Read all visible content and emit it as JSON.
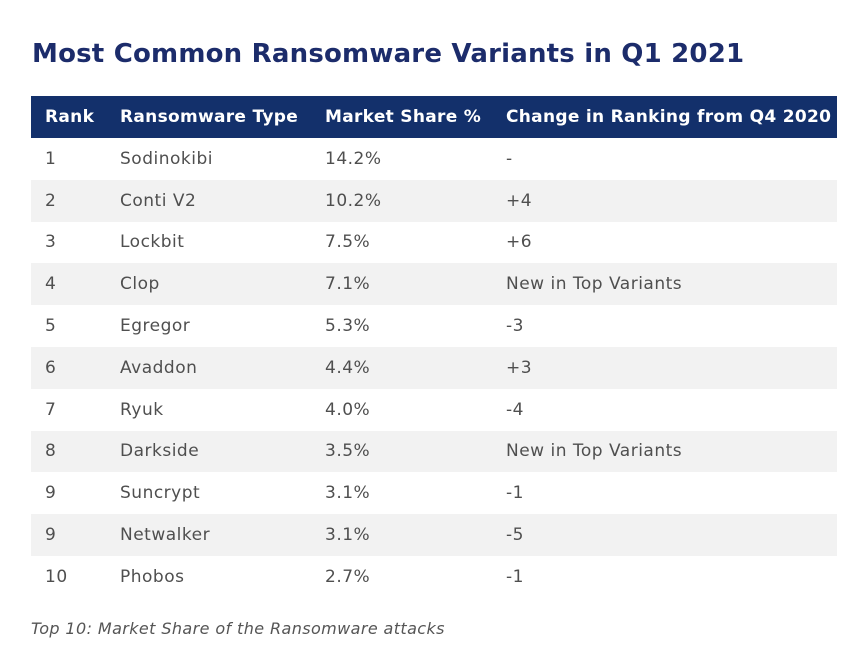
{
  "title": "Most Common Ransomware Variants in Q1 2021",
  "table": {
    "headers": [
      "Rank",
      "Ransomware Type",
      "Market Share %",
      "Change in Ranking from Q4 2020"
    ],
    "rows": [
      [
        "1",
        "Sodinokibi",
        "14.2%",
        "-"
      ],
      [
        "2",
        "Conti V2",
        "10.2%",
        "+4"
      ],
      [
        "3",
        "Lockbit",
        "7.5%",
        "+6"
      ],
      [
        "4",
        "Clop",
        "7.1%",
        "New in Top Variants"
      ],
      [
        "5",
        "Egregor",
        "5.3%",
        "-3"
      ],
      [
        "6",
        "Avaddon",
        "4.4%",
        "+3"
      ],
      [
        "7",
        "Ryuk",
        "4.0%",
        "-4"
      ],
      [
        "8",
        "Darkside",
        "3.5%",
        "New in Top Variants"
      ],
      [
        "9",
        "Suncrypt",
        "3.1%",
        "-1"
      ],
      [
        "9",
        "Netwalker",
        "3.1%",
        "-5"
      ],
      [
        "10",
        "Phobos",
        "2.7%",
        "-1"
      ]
    ]
  },
  "caption": "Top 10: Market Share of the Ransomware attacks",
  "colors": {
    "title": "#1c2c6b",
    "header_bg": "#13306b",
    "header_text": "#ffffff",
    "stripe": "#f2f2f2"
  }
}
